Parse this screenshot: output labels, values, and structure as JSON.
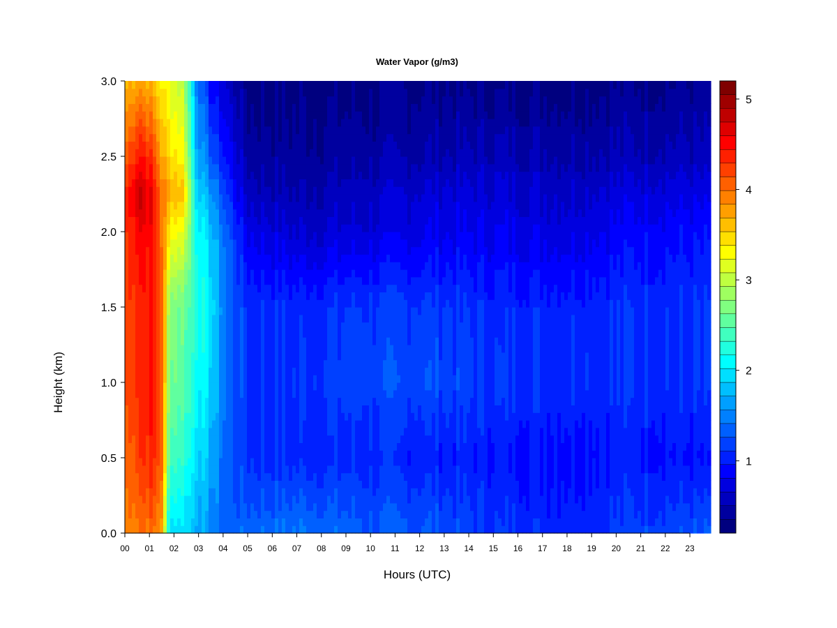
{
  "chart_data": {
    "type": "heatmap",
    "title": "Water Vapor (g/m3)",
    "xlabel": "Hours (UTC)",
    "ylabel": "Height (km)",
    "xlim": [
      0,
      23.85
    ],
    "ylim": [
      0.0,
      3.0
    ],
    "x_ticks": [
      0,
      1,
      2,
      3,
      4,
      5,
      6,
      7,
      8,
      9,
      10,
      11,
      12,
      13,
      14,
      15,
      16,
      17,
      18,
      19,
      20,
      21,
      22,
      23
    ],
    "x_tick_labels": [
      "00",
      "01",
      "02",
      "03",
      "04",
      "05",
      "06",
      "07",
      "08",
      "09",
      "10",
      "11",
      "12",
      "13",
      "14",
      "15",
      "16",
      "17",
      "18",
      "19",
      "20",
      "21",
      "22",
      "23"
    ],
    "y_ticks": [
      0.0,
      0.5,
      1.0,
      1.5,
      2.0,
      2.5,
      3.0
    ],
    "y_tick_labels": [
      "0.0",
      "0.5",
      "1.0",
      "1.5",
      "2.0",
      "2.5",
      "3.0"
    ],
    "colorbar": {
      "min": 0.2,
      "max": 5.2,
      "levels": 25,
      "ticks": [
        1,
        2,
        3,
        4,
        5
      ],
      "tick_labels": [
        "1",
        "2",
        "3",
        "4",
        "5"
      ],
      "colors": [
        "#00007f",
        "#00009f",
        "#0000bf",
        "#0000df",
        "#0000ff",
        "#0020ff",
        "#0040ff",
        "#0060ff",
        "#0080ff",
        "#009fff",
        "#00bfff",
        "#00dfff",
        "#00ffff",
        "#20ffdf",
        "#40ffbf",
        "#60ff9f",
        "#80ff80",
        "#9fff60",
        "#bfff40",
        "#dfff20",
        "#ffff00",
        "#ffdf00",
        "#ffbf00",
        "#ff9f00",
        "#ff8000",
        "#ff6000",
        "#ff4000",
        "#ff2000",
        "#ff0000",
        "#df0000",
        "#bf0000",
        "#9f0000",
        "#7f0000"
      ]
    },
    "grid": false,
    "vertical_profiles": [
      {
        "hour": 0.0,
        "heights": [
          0,
          0.5,
          1.0,
          1.5,
          2.0,
          2.25,
          2.5,
          3.0
        ],
        "values": [
          3.9,
          4.0,
          4.15,
          4.2,
          4.25,
          4.3,
          4.05,
          3.6
        ]
      },
      {
        "hour": 0.6,
        "heights": [
          0,
          0.5,
          1.0,
          1.5,
          2.0,
          2.25,
          2.5,
          3.0
        ],
        "values": [
          4.0,
          4.3,
          4.4,
          4.4,
          4.6,
          4.85,
          4.5,
          3.8
        ]
      },
      {
        "hour": 1.1,
        "heights": [
          0,
          0.5,
          1.0,
          1.5,
          2.0,
          2.25,
          2.5,
          3.0
        ],
        "values": [
          4.0,
          4.35,
          4.45,
          4.45,
          4.5,
          4.55,
          4.3,
          3.6
        ]
      },
      {
        "hour": 1.5,
        "heights": [
          0,
          0.5,
          1.0,
          1.5,
          2.0,
          2.25,
          2.5,
          3.0
        ],
        "values": [
          3.8,
          4.1,
          4.1,
          4.1,
          4.0,
          4.0,
          3.7,
          3.4
        ]
      },
      {
        "hour": 1.8,
        "heights": [
          0,
          0.5,
          1.0,
          1.5,
          2.0,
          2.25,
          2.5,
          3.0
        ],
        "values": [
          2.0,
          2.5,
          2.7,
          2.8,
          3.4,
          3.7,
          3.5,
          3.2
        ]
      },
      {
        "hour": 2.4,
        "heights": [
          0,
          0.5,
          1.0,
          1.5,
          2.0,
          2.25,
          2.5,
          3.0
        ],
        "values": [
          1.95,
          2.3,
          2.55,
          2.6,
          3.2,
          3.6,
          3.3,
          3.0
        ]
      },
      {
        "hour": 2.9,
        "heights": [
          0,
          0.5,
          1.0,
          1.5,
          2.0,
          2.25,
          2.5,
          3.0
        ],
        "values": [
          1.75,
          2.0,
          2.2,
          2.3,
          2.2,
          2.0,
          1.8,
          1.6
        ]
      },
      {
        "hour": 3.5,
        "heights": [
          0,
          0.5,
          1.0,
          1.5,
          2.0,
          2.25,
          2.5,
          3.0
        ],
        "values": [
          1.5,
          1.7,
          1.9,
          2.0,
          1.8,
          1.6,
          1.3,
          0.9
        ]
      },
      {
        "hour": 4.2,
        "heights": [
          0,
          0.5,
          1.0,
          1.5,
          2.0,
          2.25,
          2.5,
          3.0
        ],
        "values": [
          1.35,
          1.3,
          1.35,
          1.35,
          1.3,
          1.1,
          0.9,
          0.6
        ]
      },
      {
        "hour": 5.0,
        "heights": [
          0,
          0.5,
          1.0,
          1.5,
          2.0,
          2.25,
          2.5,
          3.0
        ],
        "values": [
          1.35,
          1.1,
          1.1,
          1.1,
          0.8,
          0.6,
          0.45,
          0.3
        ]
      },
      {
        "hour": 7.0,
        "heights": [
          0,
          0.5,
          1.0,
          1.5,
          2.0,
          2.25,
          2.5,
          3.0
        ],
        "values": [
          1.45,
          1.05,
          1.1,
          1.05,
          0.65,
          0.5,
          0.4,
          0.3
        ]
      },
      {
        "hour": 10.0,
        "heights": [
          0,
          0.5,
          1.0,
          1.5,
          2.0,
          2.25,
          2.5,
          3.0
        ],
        "values": [
          1.3,
          1.05,
          1.2,
          1.15,
          0.7,
          0.6,
          0.45,
          0.3
        ]
      },
      {
        "hour": 12.5,
        "heights": [
          0,
          0.5,
          1.0,
          1.5,
          2.0,
          2.25,
          2.5,
          3.0
        ],
        "values": [
          1.3,
          1.0,
          1.25,
          1.15,
          0.8,
          0.7,
          0.5,
          0.35
        ]
      },
      {
        "hour": 15.0,
        "heights": [
          0,
          0.5,
          1.0,
          1.5,
          2.0,
          2.25,
          2.5,
          3.0
        ],
        "values": [
          1.1,
          1.0,
          1.1,
          1.05,
          0.8,
          0.7,
          0.55,
          0.3
        ]
      },
      {
        "hour": 18.0,
        "heights": [
          0,
          0.5,
          1.0,
          1.5,
          2.0,
          2.25,
          2.5,
          3.0
        ],
        "values": [
          1.05,
          0.95,
          1.1,
          1.05,
          0.75,
          0.65,
          0.5,
          0.3
        ]
      },
      {
        "hour": 21.0,
        "heights": [
          0,
          0.5,
          1.0,
          1.5,
          2.0,
          2.25,
          2.5,
          3.0
        ],
        "values": [
          1.2,
          1.0,
          1.1,
          1.1,
          0.9,
          0.75,
          0.55,
          0.35
        ]
      },
      {
        "hour": 23.85,
        "heights": [
          0,
          0.5,
          1.0,
          1.5,
          2.0,
          2.25,
          2.5,
          3.0
        ],
        "values": [
          1.25,
          0.9,
          1.1,
          1.1,
          0.9,
          0.75,
          0.55,
          0.35
        ]
      }
    ]
  }
}
